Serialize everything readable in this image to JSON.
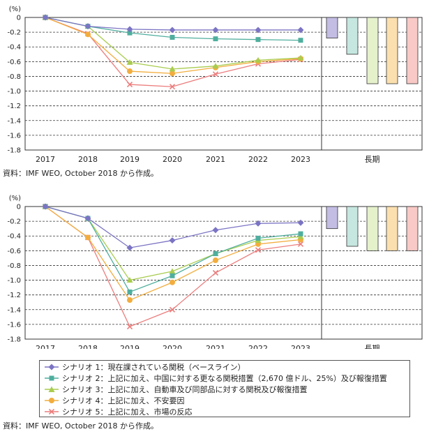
{
  "colors": {
    "scenario1": "#7b74c4",
    "scenario2": "#4fae9d",
    "scenario3": "#a9cc4f",
    "scenario4": "#f2ad3e",
    "scenario5": "#ec7d7d",
    "fill1": "#c3bde3",
    "fill2": "#c5e7e0",
    "fill3": "#e5f1cb",
    "fill4": "#fbdfae",
    "fill5": "#f8c9c6"
  },
  "legend": {
    "items": [
      "シナリオ 1：現在課されている関税（ベースライン）",
      "シナリオ 2：上記に加え、中国に対する更なる関税措置（2,670 億ドル、25%）及び報復措置",
      "シナリオ 3：上記に加え、自動車及び同部品に対する関税及び報復措置",
      "シナリオ 4：上記に加え、不安要因",
      "シナリオ 5：上記に加え、市場の反応"
    ]
  },
  "source_top": "資料：IMF WEO, October 2018 から作成。",
  "source_bottom": "資料：IMF WEO, October 2018 から作成。",
  "chart_data": [
    {
      "type": "line",
      "ylabel": "(%)",
      "ylim": [
        -1.8,
        0
      ],
      "yticks": [
        "0",
        "-0.2",
        "-0.4",
        "-0.6",
        "-0.8",
        "-1.0",
        "-1.2",
        "-1.4",
        "-1.6",
        "-1.8"
      ],
      "categories": [
        "2017",
        "2018",
        "2019",
        "2020",
        "2021",
        "2022",
        "2023"
      ],
      "grid": "dashed horizontal",
      "series": [
        {
          "name": "シナリオ 1",
          "values": [
            0,
            -0.12,
            -0.16,
            -0.17,
            -0.17,
            -0.17,
            -0.17
          ]
        },
        {
          "name": "シナリオ 2",
          "values": [
            0,
            -0.12,
            -0.21,
            -0.27,
            -0.29,
            -0.3,
            -0.31
          ]
        },
        {
          "name": "シナリオ 3",
          "values": [
            0,
            -0.12,
            -0.61,
            -0.7,
            -0.66,
            -0.58,
            -0.55
          ]
        },
        {
          "name": "シナリオ 4",
          "values": [
            0,
            -0.23,
            -0.73,
            -0.76,
            -0.68,
            -0.6,
            -0.56
          ]
        },
        {
          "name": "シナリオ 5",
          "values": [
            0,
            -0.22,
            -0.91,
            -0.94,
            -0.77,
            -0.63,
            -0.57
          ]
        }
      ],
      "long_run": {
        "label": "長期",
        "values": [
          -0.28,
          -0.5,
          -0.9,
          -0.9,
          -0.9
        ]
      }
    },
    {
      "type": "line",
      "ylabel": "(%)",
      "ylim": [
        -1.8,
        0
      ],
      "yticks": [
        "0",
        "-0.2",
        "-0.4",
        "-0.6",
        "-0.8",
        "-1.0",
        "-1.2",
        "-1.4",
        "-1.6",
        "-1.8"
      ],
      "categories": [
        "2017",
        "2018",
        "2019",
        "2020",
        "2021",
        "2022",
        "2023"
      ],
      "grid": "dashed horizontal",
      "series": [
        {
          "name": "シナリオ 1",
          "values": [
            0,
            -0.16,
            -0.56,
            -0.46,
            -0.32,
            -0.23,
            -0.22
          ]
        },
        {
          "name": "シナリオ 2",
          "values": [
            0,
            -0.16,
            -1.16,
            -0.94,
            -0.64,
            -0.43,
            -0.37
          ]
        },
        {
          "name": "シナリオ 3",
          "values": [
            0,
            -0.16,
            -1.0,
            -0.88,
            -0.64,
            -0.46,
            -0.41
          ]
        },
        {
          "name": "シナリオ 4",
          "values": [
            0,
            -0.42,
            -1.27,
            -1.03,
            -0.73,
            -0.51,
            -0.45
          ]
        },
        {
          "name": "シナリオ 5",
          "values": [
            0,
            -0.42,
            -1.63,
            -1.4,
            -0.9,
            -0.59,
            -0.51
          ]
        }
      ],
      "long_run": {
        "label": "長期",
        "values": [
          -0.3,
          -0.54,
          -0.6,
          -0.6,
          -0.6
        ]
      }
    }
  ]
}
